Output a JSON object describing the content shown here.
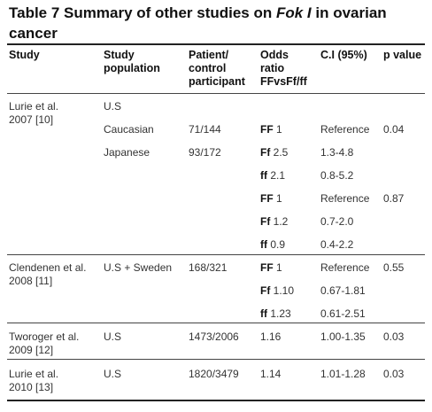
{
  "table": {
    "title_prefix": "Table 7 Summary of other studies on ",
    "title_gene": "Fok I",
    "title_suffix": " in ovarian cancer",
    "headers": {
      "study": "Study",
      "population": [
        "Study",
        "population"
      ],
      "patient": [
        "Patient/",
        "control",
        "participant"
      ],
      "odds": [
        "Odds",
        "ratio",
        "FFvsFf/ff"
      ],
      "ci": "C.I (95%)",
      "p": "p value"
    },
    "rows": [
      {
        "study": [
          "Lurie et al.",
          "2007 [10]"
        ],
        "population": "U.S",
        "patient": "",
        "genotype": "",
        "or": "",
        "ci": "",
        "p": ""
      },
      {
        "study": [],
        "population": "Caucasian",
        "patient": "71/144",
        "genotype": "FF",
        "or": "1",
        "ci": "Reference",
        "p": "0.04"
      },
      {
        "study": [],
        "population": "Japanese",
        "patient": "93/172",
        "genotype": "Ff",
        "or": "2.5",
        "ci": "1.3-4.8",
        "p": ""
      },
      {
        "study": [],
        "population": "",
        "patient": "",
        "genotype": "ff",
        "or": "2.1",
        "ci": "0.8-5.2",
        "p": ""
      },
      {
        "study": [],
        "population": "",
        "patient": "",
        "genotype": "FF",
        "or": "1",
        "ci": "Reference",
        "p": "0.87"
      },
      {
        "study": [],
        "population": "",
        "patient": "",
        "genotype": "Ff",
        "or": "1.2",
        "ci": "0.7-2.0",
        "p": ""
      },
      {
        "study": [],
        "population": "",
        "patient": "",
        "genotype": "ff",
        "or": "0.9",
        "ci": "0.4-2.2",
        "p": ""
      },
      {
        "study": [
          "Clendenen et al.",
          "2008 [11]"
        ],
        "population": "U.S + Sweden",
        "patient": "168/321",
        "genotype": "FF",
        "or": "1",
        "ci": "Reference",
        "p": "0.55"
      },
      {
        "study": [],
        "population": "",
        "patient": "",
        "genotype": "Ff",
        "or": "1.10",
        "ci": "0.67-1.81",
        "p": ""
      },
      {
        "study": [],
        "population": "",
        "patient": "",
        "genotype": "ff",
        "or": "1.23",
        "ci": "0.61-2.51",
        "p": ""
      },
      {
        "study": [
          "Tworoger et al.",
          "2009 [12]"
        ],
        "population": "U.S",
        "patient": "1473/2006",
        "genotype": "",
        "or": "1.16",
        "ci": "1.00-1.35",
        "p": "0.03"
      },
      {
        "study": [
          "Lurie et al.",
          "2010 [13]"
        ],
        "population": "U.S",
        "patient": "1820/3479",
        "genotype": "",
        "or": "1.14",
        "ci": "1.01-1.28",
        "p": "0.03"
      }
    ]
  }
}
